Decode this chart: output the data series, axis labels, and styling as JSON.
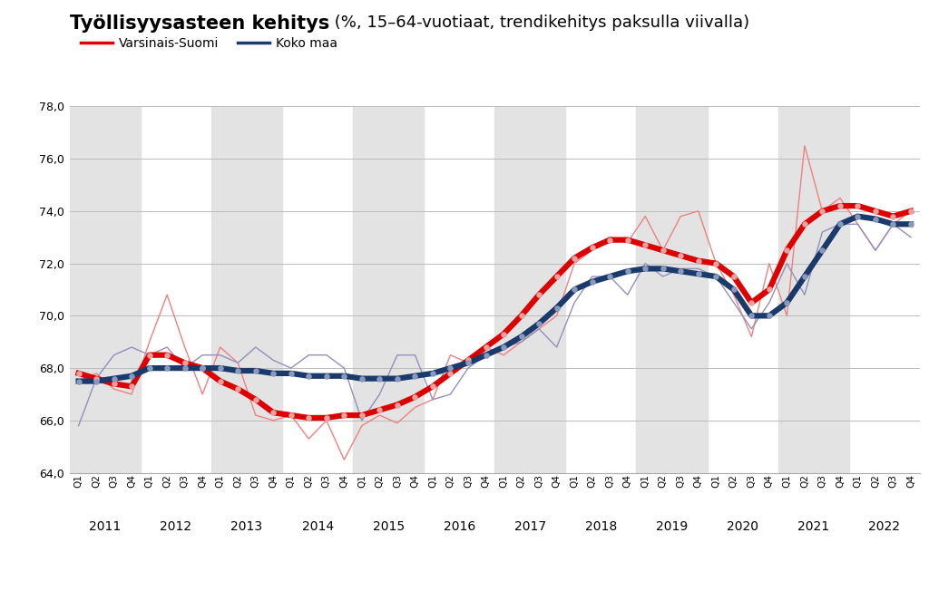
{
  "title_bold": "Työllisyysasteen kehitys",
  "title_normal": " (%, 15–64-vuotiaat, trendikehitys paksulla viivalla)",
  "legend_varsinais": "Varsinais-Suomi",
  "legend_koko": "Koko maa",
  "ylim": [
    64.0,
    78.0
  ],
  "yticks": [
    64.0,
    66.0,
    68.0,
    70.0,
    72.0,
    74.0,
    76.0,
    78.0
  ],
  "ytick_labels": [
    "64,0",
    "66,0",
    "68,0",
    "70,0",
    "72,0",
    "74,0",
    "76,0",
    "78,0"
  ],
  "varsinais_raw": [
    67.5,
    67.8,
    67.2,
    67.0,
    69.0,
    70.8,
    68.8,
    67.0,
    68.8,
    68.2,
    66.2,
    66.0,
    66.2,
    65.3,
    66.0,
    64.5,
    65.8,
    66.2,
    65.9,
    66.5,
    66.8,
    68.5,
    68.2,
    68.8,
    68.5,
    69.0,
    69.5,
    70.0,
    72.0,
    72.5,
    73.0,
    72.8,
    73.8,
    72.5,
    73.8,
    74.0,
    72.0,
    70.8,
    69.2,
    72.0,
    70.0,
    76.5,
    74.0,
    74.5,
    73.5,
    72.5,
    73.5,
    74.0
  ],
  "varsinais_trend": [
    67.8,
    67.6,
    67.4,
    67.3,
    68.5,
    68.5,
    68.2,
    68.0,
    67.5,
    67.2,
    66.8,
    66.3,
    66.2,
    66.1,
    66.1,
    66.2,
    66.2,
    66.4,
    66.6,
    66.9,
    67.3,
    67.8,
    68.3,
    68.8,
    69.3,
    70.0,
    70.8,
    71.5,
    72.2,
    72.6,
    72.9,
    72.9,
    72.7,
    72.5,
    72.3,
    72.1,
    72.0,
    71.5,
    70.5,
    71.0,
    72.5,
    73.5,
    74.0,
    74.2,
    74.2,
    74.0,
    73.8,
    74.0
  ],
  "koko_raw": [
    65.8,
    67.6,
    68.5,
    68.8,
    68.5,
    68.8,
    68.0,
    68.5,
    68.5,
    68.2,
    68.8,
    68.3,
    68.0,
    68.5,
    68.5,
    68.0,
    66.0,
    67.0,
    68.5,
    68.5,
    66.8,
    67.0,
    68.0,
    68.5,
    68.8,
    69.0,
    69.5,
    68.8,
    70.5,
    71.5,
    71.5,
    70.8,
    72.0,
    71.5,
    71.8,
    71.8,
    71.5,
    70.5,
    69.5,
    70.5,
    72.0,
    70.8,
    73.2,
    73.5,
    73.5,
    72.5,
    73.5,
    73.0
  ],
  "koko_trend": [
    67.5,
    67.5,
    67.6,
    67.7,
    68.0,
    68.0,
    68.0,
    68.0,
    68.0,
    67.9,
    67.9,
    67.8,
    67.8,
    67.7,
    67.7,
    67.7,
    67.6,
    67.6,
    67.6,
    67.7,
    67.8,
    68.0,
    68.2,
    68.5,
    68.8,
    69.2,
    69.7,
    70.3,
    71.0,
    71.3,
    71.5,
    71.7,
    71.8,
    71.8,
    71.7,
    71.6,
    71.5,
    71.0,
    70.0,
    70.0,
    70.5,
    71.5,
    72.5,
    73.5,
    73.8,
    73.7,
    73.5,
    73.5
  ],
  "color_varsinais_raw": "#f08080",
  "color_varsinais_trend": "#dd0000",
  "color_koko_raw": "#9090bb",
  "color_koko_trend": "#1a3a6b",
  "bg_band_color": "#e3e3e3",
  "grid_color": "#bbbbbb",
  "dot_color_varsinais": "#e8a0a0",
  "dot_color_koko": "#8899bb",
  "n_quarters": 48,
  "year_quarters": [
    4,
    4,
    4,
    4,
    4,
    4,
    4,
    4,
    4,
    4,
    4,
    4
  ],
  "years": [
    "2011",
    "2012",
    "2013",
    "2014",
    "2015",
    "2016",
    "2017",
    "2018",
    "2019",
    "2020",
    "2021",
    "2022"
  ],
  "gray_years_idx": [
    0,
    2,
    4,
    6,
    8,
    10
  ]
}
